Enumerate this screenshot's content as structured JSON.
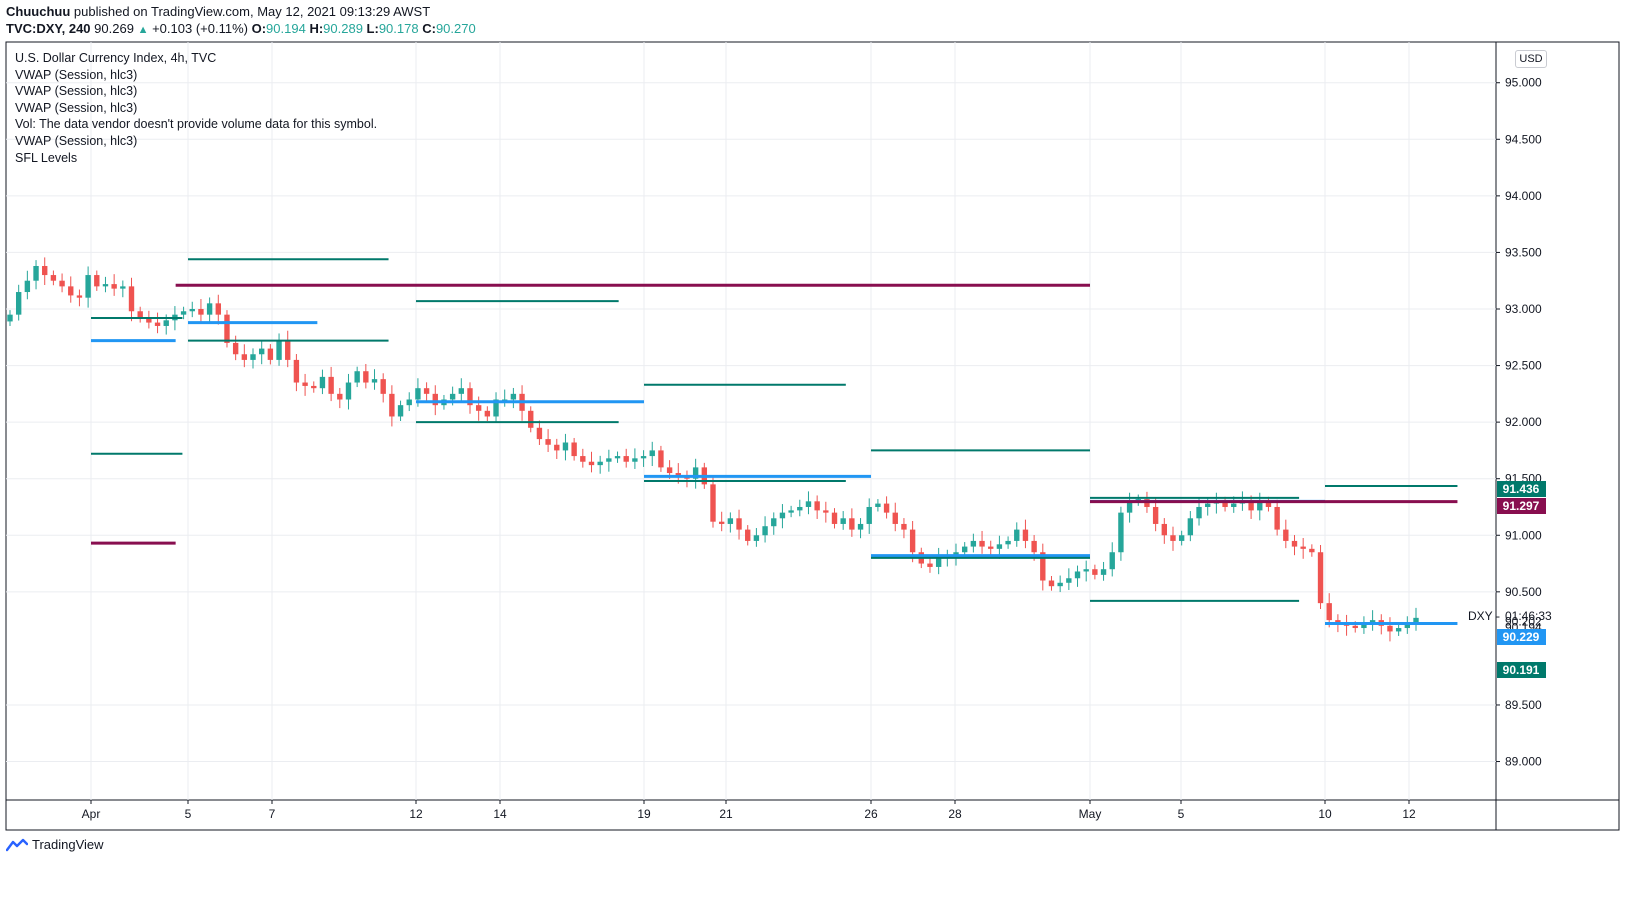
{
  "header": {
    "author": "Chuuchuu",
    "published_text": "published on TradingView.com, May 12, 2021 09:13:29 AWST",
    "symbol": "TVC:DXY, 240",
    "last": "90.269",
    "change": "+0.103 (+0.11%)",
    "open_label": "O:",
    "open": "90.194",
    "high_label": "H:",
    "high": "90.289",
    "low_label": "L:",
    "low": "90.178",
    "close_label": "C:",
    "close": "90.270"
  },
  "legend": {
    "title": "U.S. Dollar Currency Index, 4h, TVC",
    "lines": [
      "VWAP (Session, hlc3)",
      "VWAP (Session, hlc3)",
      "VWAP (Session, hlc3)",
      "Vol: The data vendor doesn't provide volume data for this symbol.",
      "VWAP (Session, hlc3)",
      "SFL Levels"
    ]
  },
  "currency_badge": "USD",
  "footer_brand": "TradingView",
  "colors": {
    "up": "#26a69a",
    "down": "#ef5350",
    "vwap": "#2196f3",
    "level_green": "#00796b",
    "level_maroon": "#880e4f",
    "grid": "#ebedf1",
    "axis_text": "#131722"
  },
  "chart_data": {
    "type": "candlestick",
    "title": "U.S. Dollar Currency Index, 4h, TVC",
    "ylim": [
      88.66,
      95.36
    ],
    "x_range": [
      -0.55,
      1.8
    ],
    "y_ticks": [
      "95.000",
      "94.500",
      "94.000",
      "93.500",
      "93.000",
      "92.500",
      "92.000",
      "91.500",
      "91.000",
      "90.500",
      "89.500",
      "89.000"
    ],
    "x_ticks": [
      {
        "label": "Apr",
        "i": 0
      },
      {
        "label": "5",
        "i": 4
      },
      {
        "label": "7",
        "i": 5
      },
      {
        "label": "12",
        "i": 8
      },
      {
        "label": "14",
        "i": 9
      },
      {
        "label": "19",
        "i": 12
      },
      {
        "label": "21",
        "i": 13
      },
      {
        "label": "26",
        "i": 16
      },
      {
        "label": "28",
        "i": 17
      },
      {
        "label": "May",
        "i": 20
      },
      {
        "label": "5",
        "i": 21
      },
      {
        "label": "10",
        "i": 24
      },
      {
        "label": "12",
        "i": 25
      }
    ],
    "day_anchors": [
      [
        0,
        0
      ],
      [
        4,
        1.146
      ],
      [
        5,
        2.125
      ],
      [
        8,
        3.824
      ],
      [
        9,
        4.809
      ],
      [
        12,
        6.485
      ],
      [
        13,
        7.451
      ],
      [
        16,
        9.156
      ],
      [
        17,
        10.117
      ],
      [
        20,
        11.817
      ],
      [
        21,
        12.86
      ],
      [
        24,
        14.555
      ],
      [
        25,
        15.55
      ]
    ],
    "closes": [
      92.95,
      93.15,
      93.25,
      93.38,
      93.3,
      93.25,
      93.2,
      93.12,
      93.1,
      93.3,
      93.2,
      93.22,
      93.18,
      93.2,
      92.98,
      92.92,
      92.88,
      92.85,
      92.9,
      92.95,
      92.98,
      93.0,
      92.95,
      93.05,
      92.95,
      92.7,
      92.6,
      92.55,
      92.6,
      92.65,
      92.55,
      92.72,
      92.55,
      92.35,
      92.32,
      92.3,
      92.4,
      92.25,
      92.2,
      92.35,
      92.45,
      92.35,
      92.38,
      92.25,
      92.05,
      92.15,
      92.2,
      92.3,
      92.25,
      92.15,
      92.2,
      92.25,
      92.3,
      92.15,
      92.1,
      92.05,
      92.2,
      92.2,
      92.25,
      92.1,
      91.95,
      91.85,
      91.8,
      91.75,
      91.82,
      91.7,
      91.65,
      91.62,
      91.65,
      91.68,
      91.7,
      91.65,
      91.68,
      91.7,
      91.75,
      91.6,
      91.55,
      91.52,
      91.5,
      91.6,
      91.45,
      91.12,
      91.1,
      91.15,
      91.05,
      90.95,
      91.0,
      91.08,
      91.15,
      91.2,
      91.22,
      91.25,
      91.3,
      91.22,
      91.2,
      91.1,
      91.15,
      91.05,
      91.1,
      91.25,
      91.28,
      91.2,
      91.1,
      91.05,
      90.85,
      90.75,
      90.72,
      90.8,
      90.82,
      90.85,
      90.9,
      90.95,
      90.9,
      90.88,
      90.92,
      90.95,
      91.05,
      90.95,
      90.85,
      90.6,
      90.55,
      90.58,
      90.62,
      90.68,
      90.7,
      90.65,
      90.7,
      90.85,
      91.2,
      91.3,
      91.32,
      91.25,
      91.1,
      91.0,
      90.95,
      91.0,
      91.15,
      91.25,
      91.28,
      91.3,
      91.25,
      91.28,
      91.3,
      91.22,
      91.3,
      91.25,
      91.05,
      90.95,
      90.9,
      90.88,
      90.85,
      90.4,
      90.25,
      90.22,
      90.2,
      90.18,
      90.22,
      90.25,
      90.2,
      90.15,
      90.18,
      90.22,
      90.27
    ],
    "vwap_segments": [
      {
        "from": 0,
        "to": 1,
        "value": 92.72
      },
      {
        "from": 1.146,
        "to": 2.66,
        "value": 92.88
      },
      {
        "from": 3.824,
        "to": 6.485,
        "value": 92.18
      },
      {
        "from": 6.485,
        "to": 9.156,
        "value": 91.52
      },
      {
        "from": 9.156,
        "to": 11.817,
        "value": 90.82
      },
      {
        "from": 11.817,
        "to": 14.555,
        "value": 91.3
      },
      {
        "from": 14.555,
        "to": 16.12,
        "value": 90.22
      }
    ],
    "levels_green": [
      {
        "from": 0,
        "to": 1.08,
        "value": 92.92
      },
      {
        "from": 0,
        "to": 1.08,
        "value": 91.72
      },
      {
        "from": 1.146,
        "to": 3.5,
        "value": 93.44
      },
      {
        "from": 1.146,
        "to": 3.5,
        "value": 92.72
      },
      {
        "from": 3.824,
        "to": 6.19,
        "value": 93.07
      },
      {
        "from": 3.824,
        "to": 6.19,
        "value": 92.0
      },
      {
        "from": 6.485,
        "to": 8.86,
        "value": 92.33
      },
      {
        "from": 6.485,
        "to": 8.86,
        "value": 91.48
      },
      {
        "from": 9.156,
        "to": 11.817,
        "value": 91.75
      },
      {
        "from": 9.156,
        "to": 11.817,
        "value": 90.8
      },
      {
        "from": 11.817,
        "to": 14.25,
        "value": 91.33
      },
      {
        "from": 11.817,
        "to": 14.25,
        "value": 90.42
      },
      {
        "from": 14.555,
        "to": 16.12,
        "value": 91.436
      }
    ],
    "levels_maroon": [
      {
        "from": 0,
        "to": 1.0,
        "value": 90.93
      },
      {
        "from": 1.0,
        "to": 11.817,
        "value": 93.21
      },
      {
        "from": 11.817,
        "to": 16.12,
        "value": 91.297
      }
    ],
    "price_labels": [
      {
        "text": "91.436",
        "value": 91.436,
        "color": "#00796b"
      },
      {
        "text": "91.297",
        "value": 91.297,
        "color": "#880e4f"
      },
      {
        "text": "90.229",
        "value": 90.229,
        "color": "#2196f3"
      },
      {
        "text": "90.191",
        "value": 90.191,
        "color": "#00796b"
      }
    ],
    "price_overlap": {
      "top": "90.202",
      "bottom": "90.194",
      "value": 90.194
    },
    "current_price": {
      "symbol": "DXY",
      "countdown": "01:46:33",
      "value": 90.27
    }
  }
}
